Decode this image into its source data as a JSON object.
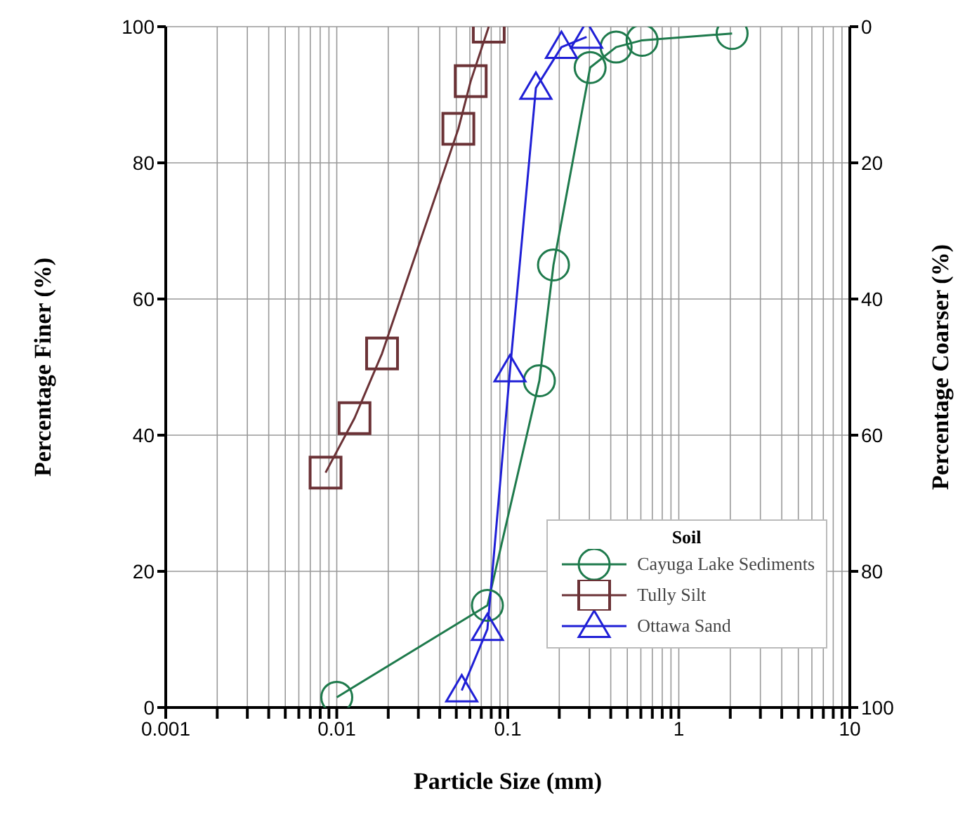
{
  "chart_data": {
    "type": "line",
    "xlabel": "Particle Size (mm)",
    "ylabel": "Percentage Finer (%)",
    "y2label": "Percentage Coarser (%)",
    "legend_title": "Soil",
    "log": "x",
    "grid": true,
    "legend": "bottom right",
    "line_style": "solid",
    "xlim": [
      0.001,
      10
    ],
    "xticks": [
      0.001,
      {
        "value": 0.002,
        "label": null
      },
      {
        "value": 0.003,
        "label": null
      },
      {
        "value": 0.004,
        "label": null
      },
      {
        "value": 0.005,
        "label": null
      },
      {
        "value": 0.006,
        "label": null
      },
      {
        "value": 0.007,
        "label": null
      },
      {
        "value": 0.008,
        "label": null
      },
      {
        "value": 0.009,
        "label": null
      },
      0.01,
      {
        "value": 0.02,
        "label": null
      },
      {
        "value": 0.03,
        "label": null
      },
      {
        "value": 0.04,
        "label": null
      },
      {
        "value": 0.05,
        "label": null
      },
      {
        "value": 0.06,
        "label": null
      },
      {
        "value": 0.07,
        "label": null
      },
      {
        "value": 0.08,
        "label": null
      },
      {
        "value": 0.09,
        "label": null
      },
      0.1,
      {
        "value": 0.2,
        "label": null
      },
      {
        "value": 0.3,
        "label": null
      },
      {
        "value": 0.4,
        "label": null
      },
      {
        "value": 0.5,
        "label": null
      },
      {
        "value": 0.6,
        "label": null
      },
      {
        "value": 0.7,
        "label": null
      },
      {
        "value": 0.8,
        "label": null
      },
      {
        "value": 0.9,
        "label": null
      },
      1,
      {
        "value": 2,
        "label": null
      },
      {
        "value": 3,
        "label": null
      },
      {
        "value": 4,
        "label": null
      },
      {
        "value": 5,
        "label": null
      },
      {
        "value": 6,
        "label": null
      },
      {
        "value": 7,
        "label": null
      },
      {
        "value": 8,
        "label": null
      },
      {
        "value": 9,
        "label": null
      },
      10
    ],
    "ylim": [
      0,
      100
    ],
    "yticks": [
      0,
      20,
      40,
      60,
      80,
      100
    ],
    "y2lim": [
      100,
      0
    ],
    "y2ticks": [
      0,
      20,
      40,
      60,
      80,
      100
    ],
    "series": [
      {
        "name": "Cayuga Lake Sediments",
        "color": "#1e7a4c",
        "marker": "circle",
        "x": [
          0.01,
          0.076,
          0.153,
          0.185,
          0.303,
          0.43,
          0.61,
          2.05
        ],
        "values": [
          1.5,
          15,
          48,
          65,
          94,
          97,
          98,
          99
        ]
      },
      {
        "name": "Tully Silt",
        "color": "#6b3236",
        "marker": "square",
        "x": [
          0.0086,
          0.0127,
          0.0184,
          0.0514,
          0.0607,
          0.0774
        ],
        "values": [
          34.5,
          42.5,
          52,
          85,
          92,
          100
        ]
      },
      {
        "name": "Ottawa Sand",
        "color": "#1f1fd6",
        "marker": "triangle",
        "x": [
          0.0538,
          0.076,
          0.103,
          0.146,
          0.206,
          0.289
        ],
        "values": [
          2.5,
          11.5,
          49.5,
          91,
          97,
          98.5
        ]
      }
    ]
  }
}
